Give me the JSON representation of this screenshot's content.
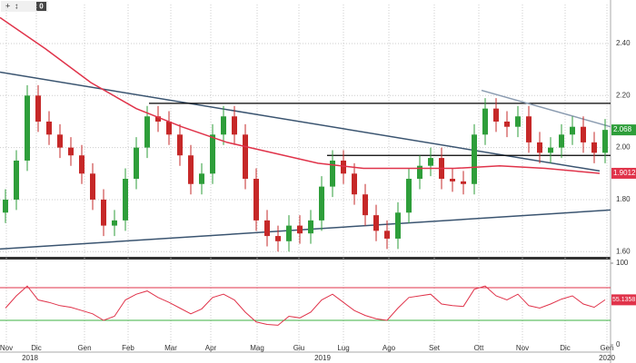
{
  "toolbar": {
    "badge": "0"
  },
  "chart_data": [
    {
      "type": "candlestick",
      "x": [
        3,
        9,
        15,
        21,
        27,
        33,
        39,
        45,
        51,
        57,
        63,
        69,
        75,
        81,
        87,
        93,
        99,
        105,
        111,
        117,
        123,
        129,
        135,
        141,
        147,
        153,
        159,
        165,
        171,
        177,
        183,
        189,
        195,
        201,
        207,
        213,
        219,
        225,
        231,
        237,
        243,
        249,
        255,
        261,
        267,
        273,
        279,
        285,
        291,
        297,
        303,
        309,
        315,
        321,
        327,
        333
      ],
      "open": [
        1.75,
        1.8,
        1.95,
        2.2,
        2.1,
        2.05,
        2.0,
        1.97,
        1.9,
        1.8,
        1.7,
        1.72,
        1.88,
        2.0,
        2.12,
        2.1,
        2.05,
        1.97,
        1.86,
        1.9,
        2.05,
        2.12,
        2.05,
        1.88,
        1.72,
        1.66,
        1.64,
        1.7,
        1.67,
        1.72,
        1.85,
        1.95,
        1.9,
        1.82,
        1.74,
        1.68,
        1.65,
        1.75,
        1.88,
        1.93,
        1.96,
        1.88,
        1.87,
        1.86,
        2.05,
        2.15,
        2.1,
        2.08,
        2.12,
        2.02,
        1.98,
        2.0,
        2.05,
        2.08,
        2.02,
        1.98
      ],
      "high": [
        1.84,
        1.99,
        2.24,
        2.24,
        2.14,
        2.09,
        2.04,
        2.01,
        1.94,
        1.84,
        1.76,
        1.92,
        2.04,
        2.16,
        2.16,
        2.14,
        2.09,
        2.01,
        1.94,
        2.09,
        2.16,
        2.16,
        2.09,
        1.92,
        1.76,
        1.7,
        1.74,
        1.74,
        1.76,
        1.89,
        1.99,
        1.99,
        1.94,
        1.86,
        1.78,
        1.72,
        1.79,
        1.92,
        1.97,
        2.0,
        2.0,
        1.92,
        1.91,
        2.09,
        2.19,
        2.19,
        2.14,
        2.16,
        2.16,
        2.06,
        2.04,
        2.09,
        2.12,
        2.12,
        2.06,
        2.11
      ],
      "low": [
        1.71,
        1.76,
        1.91,
        2.06,
        2.01,
        1.96,
        1.93,
        1.86,
        1.76,
        1.66,
        1.66,
        1.68,
        1.84,
        1.96,
        2.06,
        2.01,
        1.93,
        1.82,
        1.82,
        1.86,
        2.01,
        2.01,
        1.84,
        1.68,
        1.62,
        1.6,
        1.6,
        1.63,
        1.63,
        1.68,
        1.81,
        1.86,
        1.78,
        1.7,
        1.64,
        1.61,
        1.61,
        1.71,
        1.84,
        1.89,
        1.84,
        1.83,
        1.82,
        1.82,
        2.01,
        2.06,
        2.04,
        2.04,
        1.98,
        1.94,
        1.94,
        1.96,
        2.01,
        1.98,
        1.94,
        1.94
      ],
      "close": [
        1.8,
        1.95,
        2.2,
        2.1,
        2.05,
        2.0,
        1.97,
        1.9,
        1.8,
        1.7,
        1.72,
        1.88,
        2.0,
        2.12,
        2.1,
        2.05,
        1.97,
        1.86,
        1.9,
        2.05,
        2.12,
        2.05,
        1.88,
        1.72,
        1.66,
        1.64,
        1.7,
        1.67,
        1.72,
        1.85,
        1.95,
        1.9,
        1.82,
        1.74,
        1.68,
        1.65,
        1.75,
        1.88,
        1.93,
        1.96,
        1.88,
        1.87,
        1.86,
        2.05,
        2.15,
        2.1,
        2.08,
        2.12,
        2.02,
        1.98,
        2.0,
        2.05,
        2.08,
        2.02,
        1.98,
        2.068
      ],
      "up_color": "#2e9e3a",
      "down_color": "#c62828",
      "moving_average": {
        "color": "#e0334a",
        "x": [
          0,
          25,
          50,
          75,
          100,
          125,
          150,
          175,
          200,
          225,
          250,
          275,
          300,
          330
        ],
        "values": [
          2.5,
          2.38,
          2.25,
          2.15,
          2.08,
          2.02,
          1.98,
          1.94,
          1.92,
          1.92,
          1.92,
          1.93,
          1.92,
          1.9012
        ]
      },
      "trend_lines": [
        {
          "color": "#3a5470",
          "x": [
            0,
            330
          ],
          "y": [
            2.29,
            1.91
          ]
        },
        {
          "color": "#3a5470",
          "x": [
            0,
            336
          ],
          "y": [
            1.61,
            1.76
          ]
        },
        {
          "color": "#000000",
          "x": [
            82,
            336
          ],
          "y": [
            2.17,
            2.17
          ]
        },
        {
          "color": "#000000",
          "x": [
            180,
            336
          ],
          "y": [
            1.97,
            1.97
          ]
        },
        {
          "color": "#8a9bb0",
          "x": [
            265,
            336
          ],
          "y": [
            2.22,
            2.08
          ]
        }
      ],
      "xlim": [
        0,
        336
      ],
      "ylim": [
        1.58,
        2.55
      ],
      "yticks": [
        {
          "value": 1.6,
          "label": "1.60"
        },
        {
          "value": 1.8,
          "label": "1.80"
        },
        {
          "value": 2.0,
          "label": "2.00"
        },
        {
          "value": 2.2,
          "label": "2.20"
        },
        {
          "value": 2.4,
          "label": "2.40"
        }
      ],
      "xticks": [
        {
          "value": 3.5,
          "label": "Nov"
        },
        {
          "value": 20,
          "label": "Dic"
        },
        {
          "value": 46.5,
          "label": "Gen"
        },
        {
          "value": 70.5,
          "label": "Feb"
        },
        {
          "value": 94,
          "label": "Mar"
        },
        {
          "value": 116,
          "label": "Apr"
        },
        {
          "value": 141.5,
          "label": "Mag"
        },
        {
          "value": 164.5,
          "label": "Giu"
        },
        {
          "value": 189,
          "label": "Lug"
        },
        {
          "value": 214,
          "label": "Ago"
        },
        {
          "value": 239,
          "label": "Set"
        },
        {
          "value": 263.5,
          "label": "Ott"
        },
        {
          "value": 287.5,
          "label": "Nov"
        },
        {
          "value": 311,
          "label": "Dic"
        },
        {
          "value": 334,
          "label": "Gen"
        }
      ],
      "year_ticks": [
        {
          "value": 16.5,
          "label": "2018"
        },
        {
          "value": 177.5,
          "label": "2019"
        },
        {
          "value": 334,
          "label": "2020"
        }
      ],
      "grid": true
    },
    {
      "type": "line",
      "x": [
        3,
        9,
        15,
        21,
        27,
        33,
        39,
        45,
        51,
        57,
        63,
        69,
        75,
        81,
        87,
        93,
        99,
        105,
        111,
        117,
        123,
        129,
        135,
        141,
        147,
        153,
        159,
        165,
        171,
        177,
        183,
        189,
        195,
        201,
        207,
        213,
        219,
        225,
        231,
        237,
        243,
        249,
        255,
        261,
        267,
        273,
        279,
        285,
        291,
        297,
        303,
        309,
        315,
        321,
        327,
        333
      ],
      "values": [
        45,
        60,
        72,
        55,
        52,
        48,
        46,
        42,
        38,
        30,
        35,
        55,
        62,
        66,
        58,
        52,
        45,
        38,
        44,
        58,
        62,
        55,
        40,
        28,
        25,
        24,
        35,
        33,
        40,
        55,
        62,
        52,
        42,
        36,
        32,
        30,
        45,
        58,
        60,
        62,
        50,
        48,
        47,
        68,
        72,
        60,
        55,
        62,
        48,
        45,
        50,
        56,
        60,
        50,
        46,
        55.1358
      ],
      "color": "#e0334a",
      "upper_level": {
        "value": 70,
        "color": "#e0334a"
      },
      "lower_level": {
        "value": 30,
        "color": "#3cb043"
      },
      "xlim": [
        0,
        336
      ],
      "ylim": [
        0,
        100
      ],
      "yticks": [
        0,
        100
      ]
    }
  ]
}
